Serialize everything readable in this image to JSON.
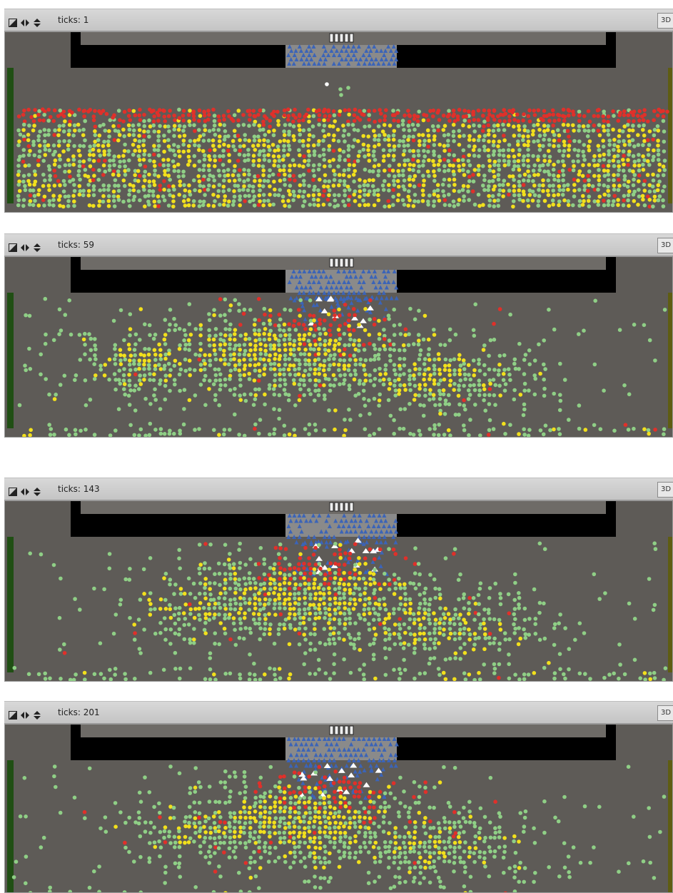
{
  "panels": [
    {
      "ticks_label": "ticks: 1",
      "button_3d": "3D",
      "scene": "initial"
    },
    {
      "ticks_label": "ticks: 59",
      "button_3d": "3D",
      "scene": "spread"
    },
    {
      "ticks_label": "ticks: 143",
      "button_3d": "3D",
      "scene": "dense"
    },
    {
      "ticks_label": "ticks: 201",
      "button_3d": "3D",
      "scene": "late"
    }
  ],
  "colors": {
    "ground": "#5e5b57",
    "barrier": "#000000",
    "stage": "#8a8a8a",
    "police": "#3b64b8",
    "agitated": "#e0302a",
    "excited": "#f2e01c",
    "calm": "#8fcf86",
    "injured": "#ffffff",
    "exit_green": "#204f14",
    "exit_olive": "#5f5d12"
  }
}
